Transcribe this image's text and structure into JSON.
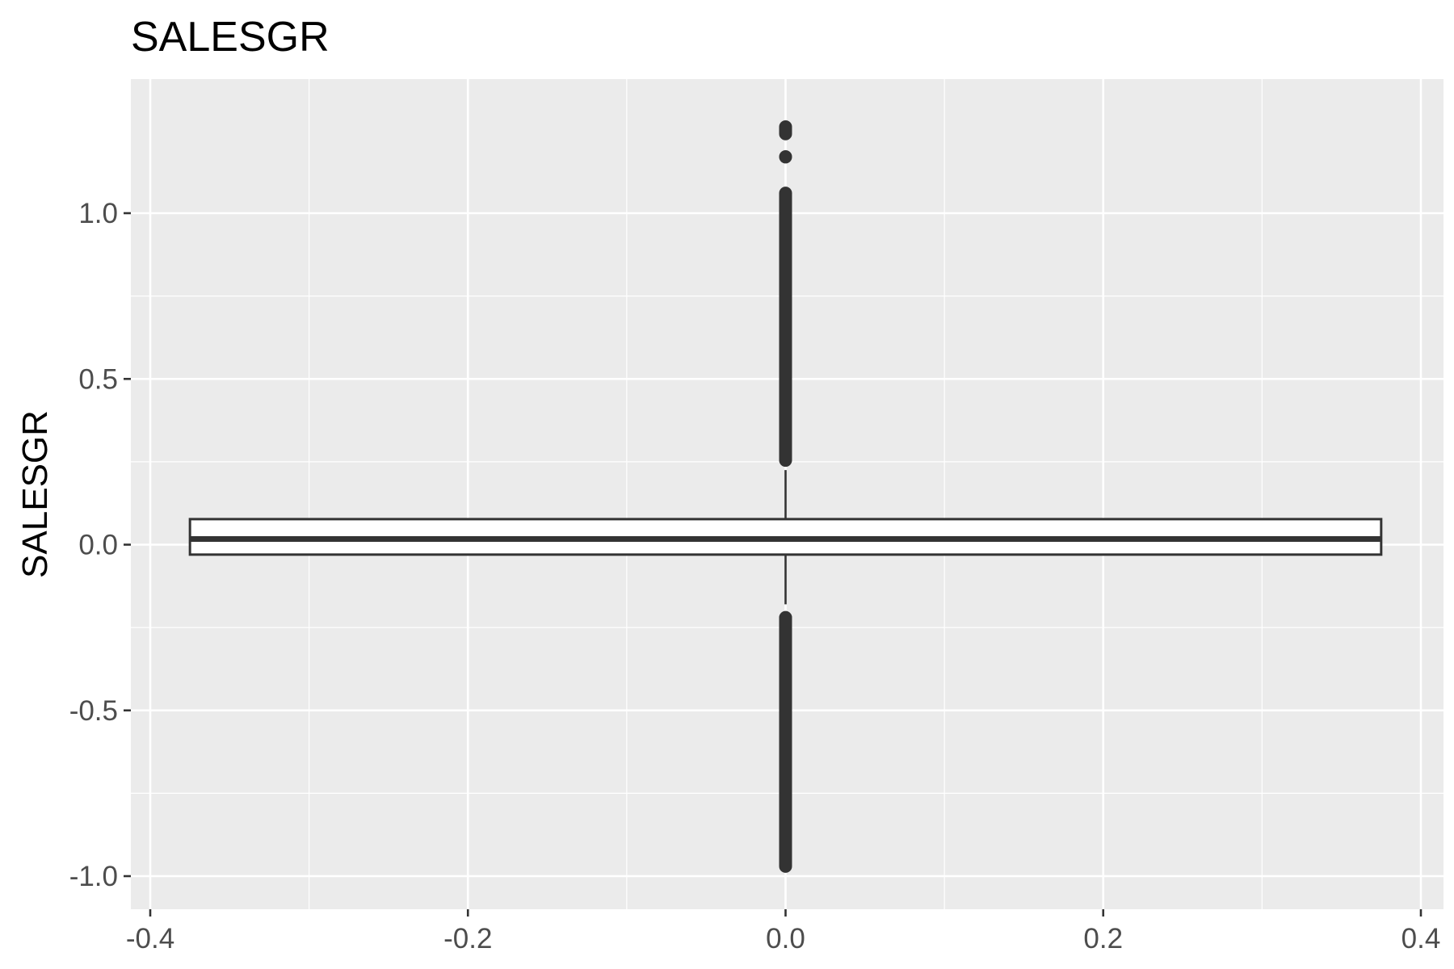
{
  "chart_data": {
    "type": "boxplot",
    "title": "SALESGR",
    "xlabel": "",
    "ylabel": "SALESGR",
    "xlim": [
      -0.4,
      0.4
    ],
    "ylim": [
      -1.0,
      1.25
    ],
    "x_ticks": [
      "-0.4",
      "-0.2",
      "0.0",
      "0.2",
      "0.4"
    ],
    "y_ticks": [
      "-1.0",
      "-0.5",
      "0.0",
      "0.5",
      "1.0"
    ],
    "grid": true,
    "panel_background": "#ebebeb",
    "grid_color": "#ffffff",
    "box_outline_color": "#333333",
    "box_fill_color": "#ffffff",
    "box": {
      "x_min": -0.375,
      "x_max": 0.375,
      "q1": -0.03,
      "median": 0.017,
      "q3": 0.077,
      "whisker_low": -0.18,
      "whisker_high": 0.225
    },
    "outliers_high_range": [
      [
        0.235,
        1.08
      ],
      [
        1.15,
        1.19
      ],
      [
        1.22,
        1.28
      ]
    ],
    "outliers_low_range": [
      [
        -0.99,
        -0.2
      ]
    ]
  }
}
